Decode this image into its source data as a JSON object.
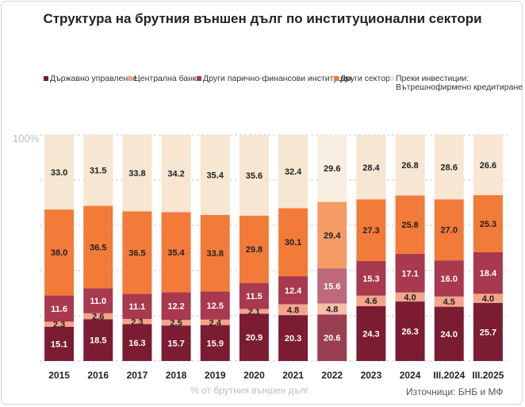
{
  "title": "Структура на брутния външен дълг по институционални сектори",
  "y_top_label": "100%",
  "x_axis_title": "% от брутния външен дълг",
  "source": "Източници: БНБ и МФ",
  "colors": {
    "government": "#7b1c33",
    "central_bank": "#f4a48a",
    "other_mfi": "#a8394e",
    "other_sectors": "#f37b3a",
    "direct_investment": "#f6e6d2",
    "highlight_2022_government": "#9a3e52",
    "highlight_2022_central_bank": "#f6bfa8",
    "highlight_2022_other_mfi": "#be6a7b",
    "highlight_2022_other_sectors": "#f59b66",
    "highlight_2022_direct_investment": "#f9eee2"
  },
  "legend": [
    {
      "name": "Държавно управление",
      "color_key": "government"
    },
    {
      "name": "Централна банка",
      "color_key": "central_bank"
    },
    {
      "name": "Други парично-финансови институции",
      "color_key": "other_mfi"
    },
    {
      "name": "Други сектори",
      "color_key": "other_sectors"
    },
    {
      "name": "Преки инвестиции:",
      "name_line2": "Вътрешнофирмено кредитиране",
      "color_key": "direct_investment"
    }
  ],
  "chart_data": {
    "type": "bar",
    "stacked": true,
    "ylim": [
      0,
      100
    ],
    "categories": [
      "2015",
      "2016",
      "2017",
      "2018",
      "2019",
      "2020",
      "2021",
      "2022",
      "2023",
      "2024",
      "III.2024",
      "III.2025"
    ],
    "highlight_category": "2022",
    "series": [
      {
        "name": "Държавно управление",
        "key": "government",
        "values": [
          15.1,
          18.5,
          16.3,
          15.7,
          15.9,
          20.9,
          20.3,
          20.6,
          24.3,
          26.3,
          24.0,
          25.7
        ]
      },
      {
        "name": "Централна банка",
        "key": "central_bank",
        "values": [
          2.3,
          2.6,
          2.3,
          2.5,
          2.4,
          2.1,
          4.8,
          4.8,
          4.6,
          4.0,
          4.5,
          4.0
        ]
      },
      {
        "name": "Други парично-финансови институции",
        "key": "other_mfi",
        "values": [
          11.6,
          11.0,
          11.1,
          12.2,
          12.5,
          11.5,
          12.4,
          15.6,
          15.3,
          17.1,
          16.0,
          18.4
        ]
      },
      {
        "name": "Други сектори",
        "key": "other_sectors",
        "values": [
          38.0,
          36.5,
          36.5,
          35.4,
          33.8,
          29.8,
          30.1,
          29.4,
          27.3,
          25.8,
          27.0,
          25.3
        ]
      },
      {
        "name": "Преки инвестиции: Вътрешнофирмено кредитиране",
        "key": "direct_investment",
        "values": [
          33.0,
          31.5,
          33.8,
          34.2,
          35.4,
          35.6,
          32.4,
          29.6,
          28.4,
          26.8,
          28.6,
          26.6
        ]
      }
    ]
  }
}
